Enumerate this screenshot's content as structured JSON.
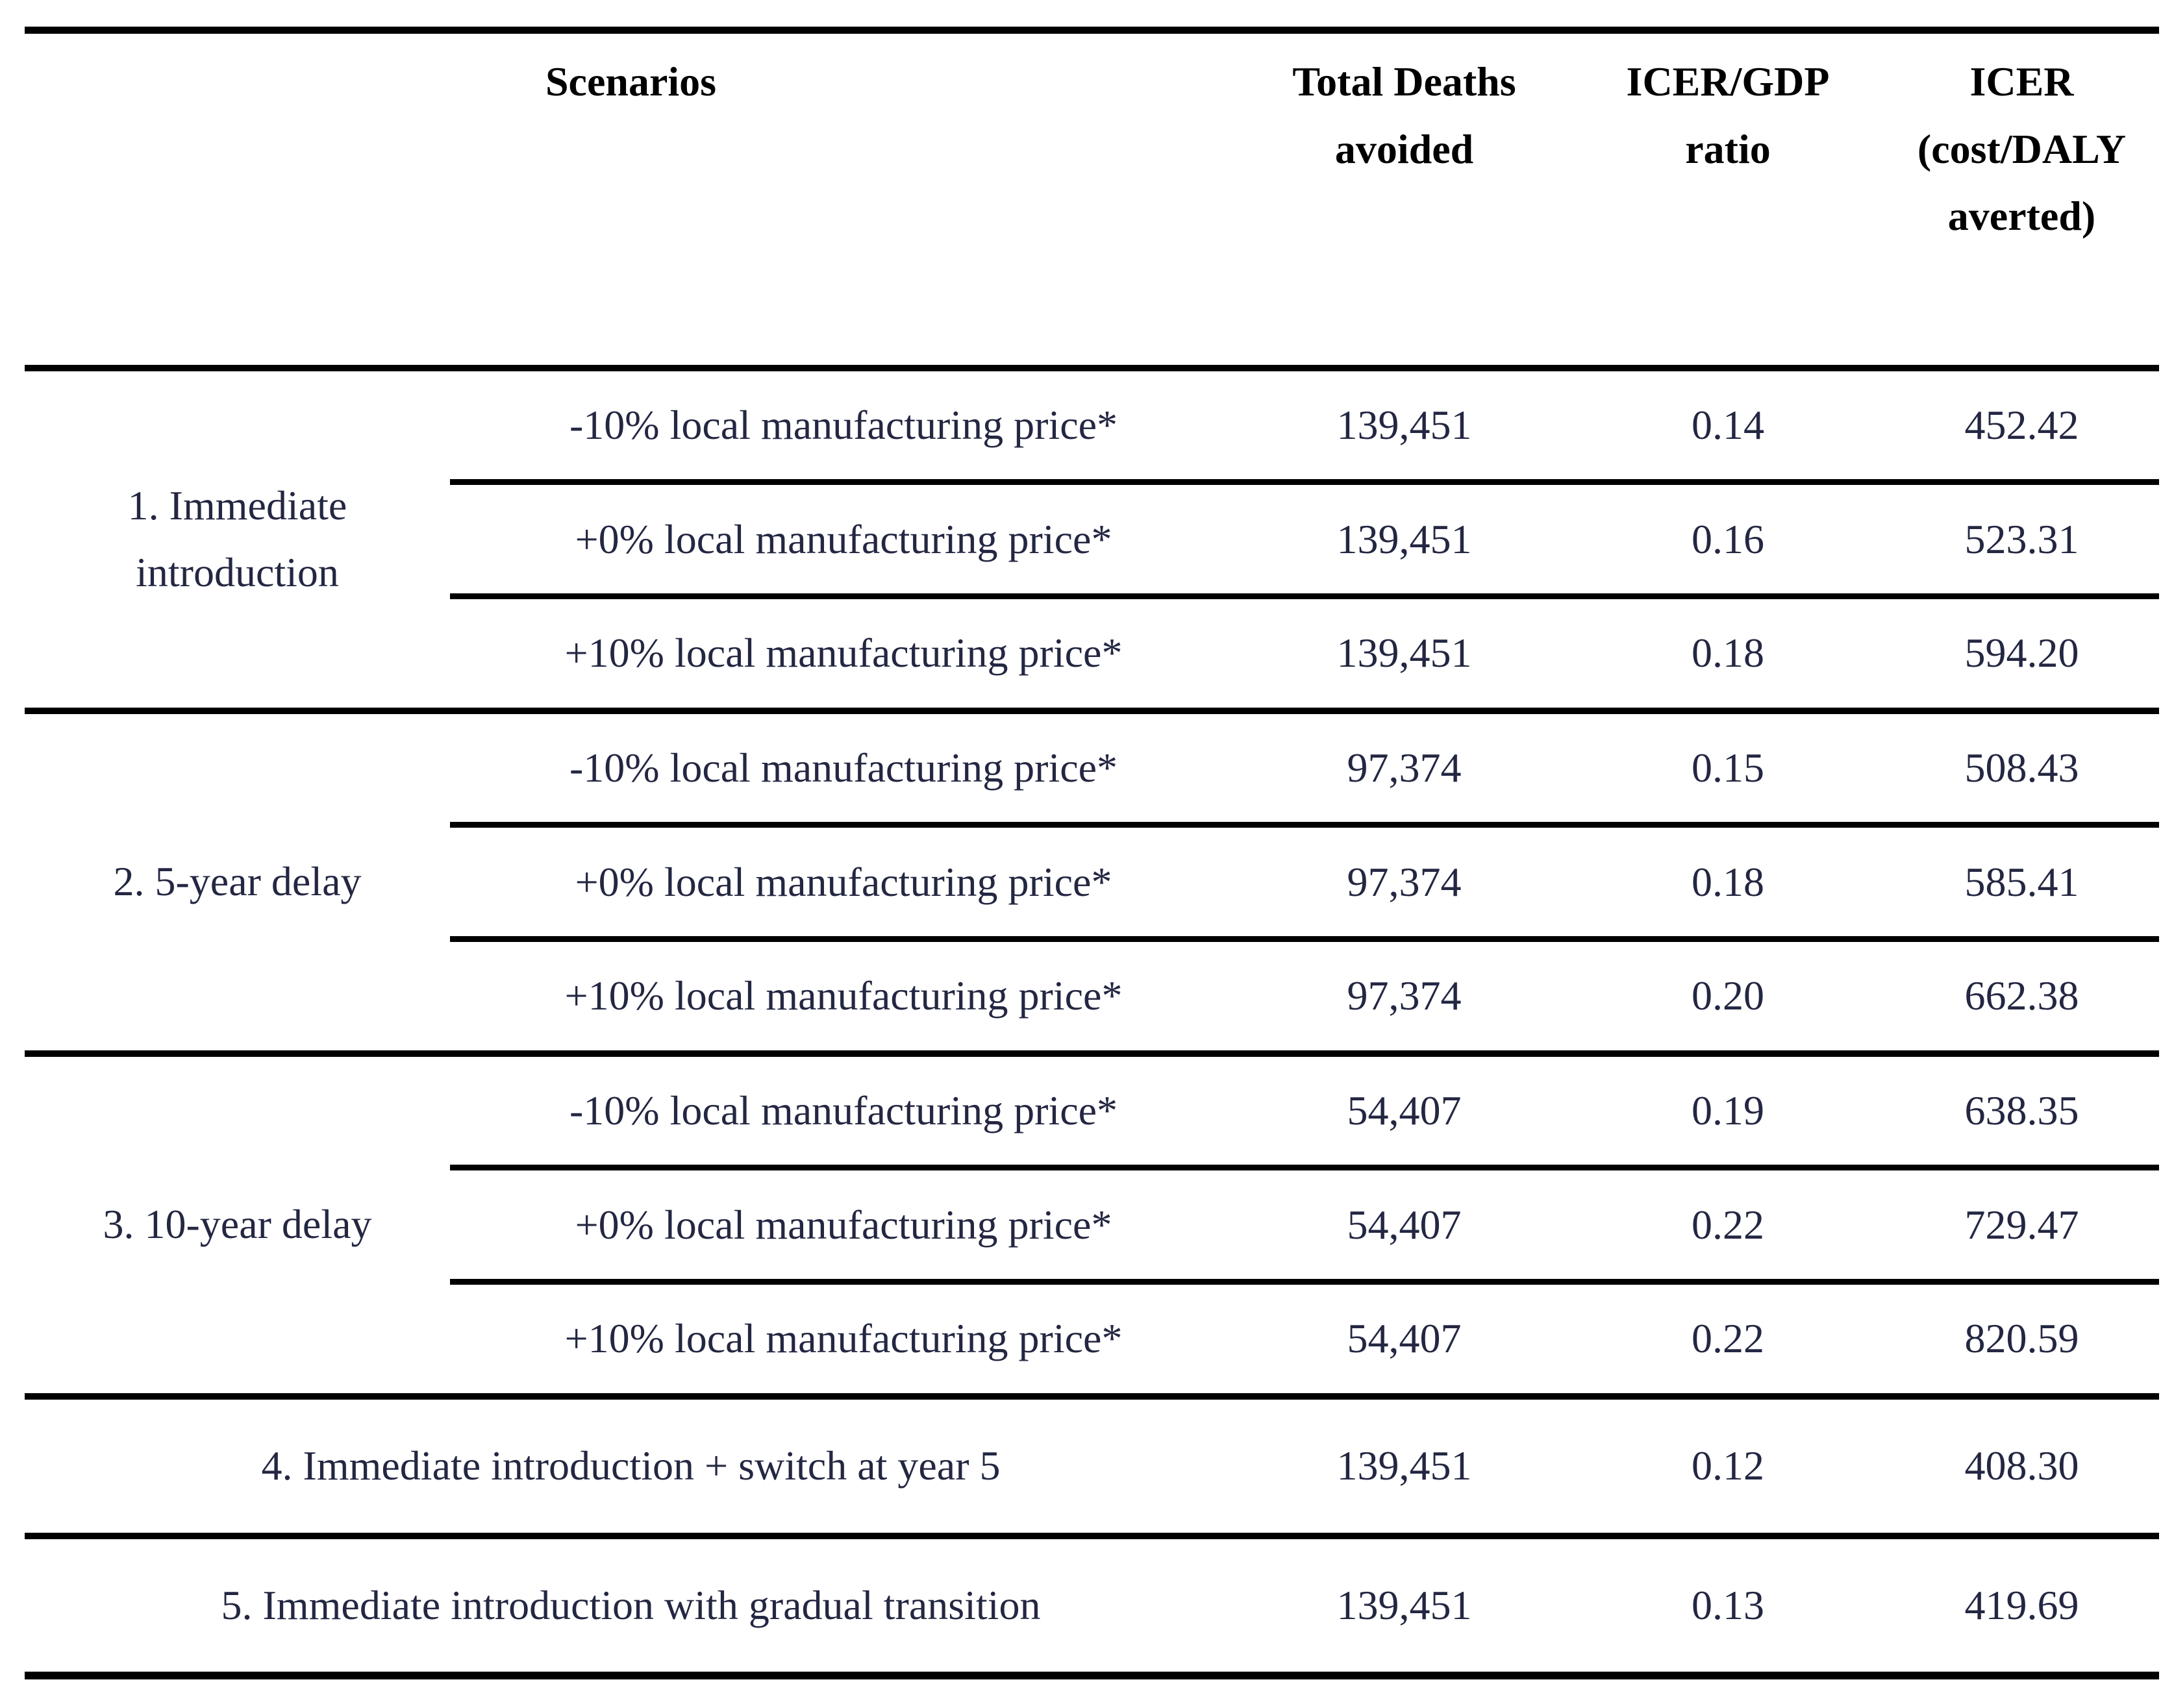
{
  "table": {
    "colors": {
      "body_text": "#232742",
      "header_text": "#000000",
      "rule_line": "#000000",
      "background": "#ffffff"
    },
    "headers": {
      "scenarios": "Scenarios",
      "total_deaths": "Total Deaths\navoided",
      "icer_gdp": "ICER/GDP\nratio",
      "icer": "ICER\n(cost/DALY\naverted)"
    },
    "sections": [
      {
        "label": "1. Immediate introduction",
        "rows": [
          {
            "variant": "-10% local manufacturing price*",
            "deaths": "139,451",
            "icer_gdp": "0.14",
            "icer": "452.42"
          },
          {
            "variant": "+0% local manufacturing price*",
            "deaths": "139,451",
            "icer_gdp": "0.16",
            "icer": "523.31"
          },
          {
            "variant": "+10% local manufacturing price*",
            "deaths": "139,451",
            "icer_gdp": "0.18",
            "icer": "594.20"
          }
        ]
      },
      {
        "label": "2. 5-year delay",
        "rows": [
          {
            "variant": "-10% local manufacturing price*",
            "deaths": "97,374",
            "icer_gdp": "0.15",
            "icer": "508.43"
          },
          {
            "variant": "+0% local manufacturing price*",
            "deaths": "97,374",
            "icer_gdp": "0.18",
            "icer": "585.41"
          },
          {
            "variant": "+10% local manufacturing price*",
            "deaths": "97,374",
            "icer_gdp": "0.20",
            "icer": "662.38"
          }
        ]
      },
      {
        "label": "3. 10-year delay",
        "rows": [
          {
            "variant": "-10% local manufacturing price*",
            "deaths": "54,407",
            "icer_gdp": "0.19",
            "icer": "638.35"
          },
          {
            "variant": "+0% local manufacturing price*",
            "deaths": "54,407",
            "icer_gdp": "0.22",
            "icer": "729.47"
          },
          {
            "variant": "+10% local manufacturing price*",
            "deaths": "54,407",
            "icer_gdp": "0.22",
            "icer": "820.59"
          }
        ]
      }
    ],
    "summary_rows": [
      {
        "label": "4. Immediate introduction + switch at year 5",
        "deaths": "139,451",
        "icer_gdp": "0.12",
        "icer": "408.30"
      },
      {
        "label": "5. Immediate introduction with gradual transition",
        "deaths": "139,451",
        "icer_gdp": "0.13",
        "icer": "419.69"
      }
    ]
  }
}
